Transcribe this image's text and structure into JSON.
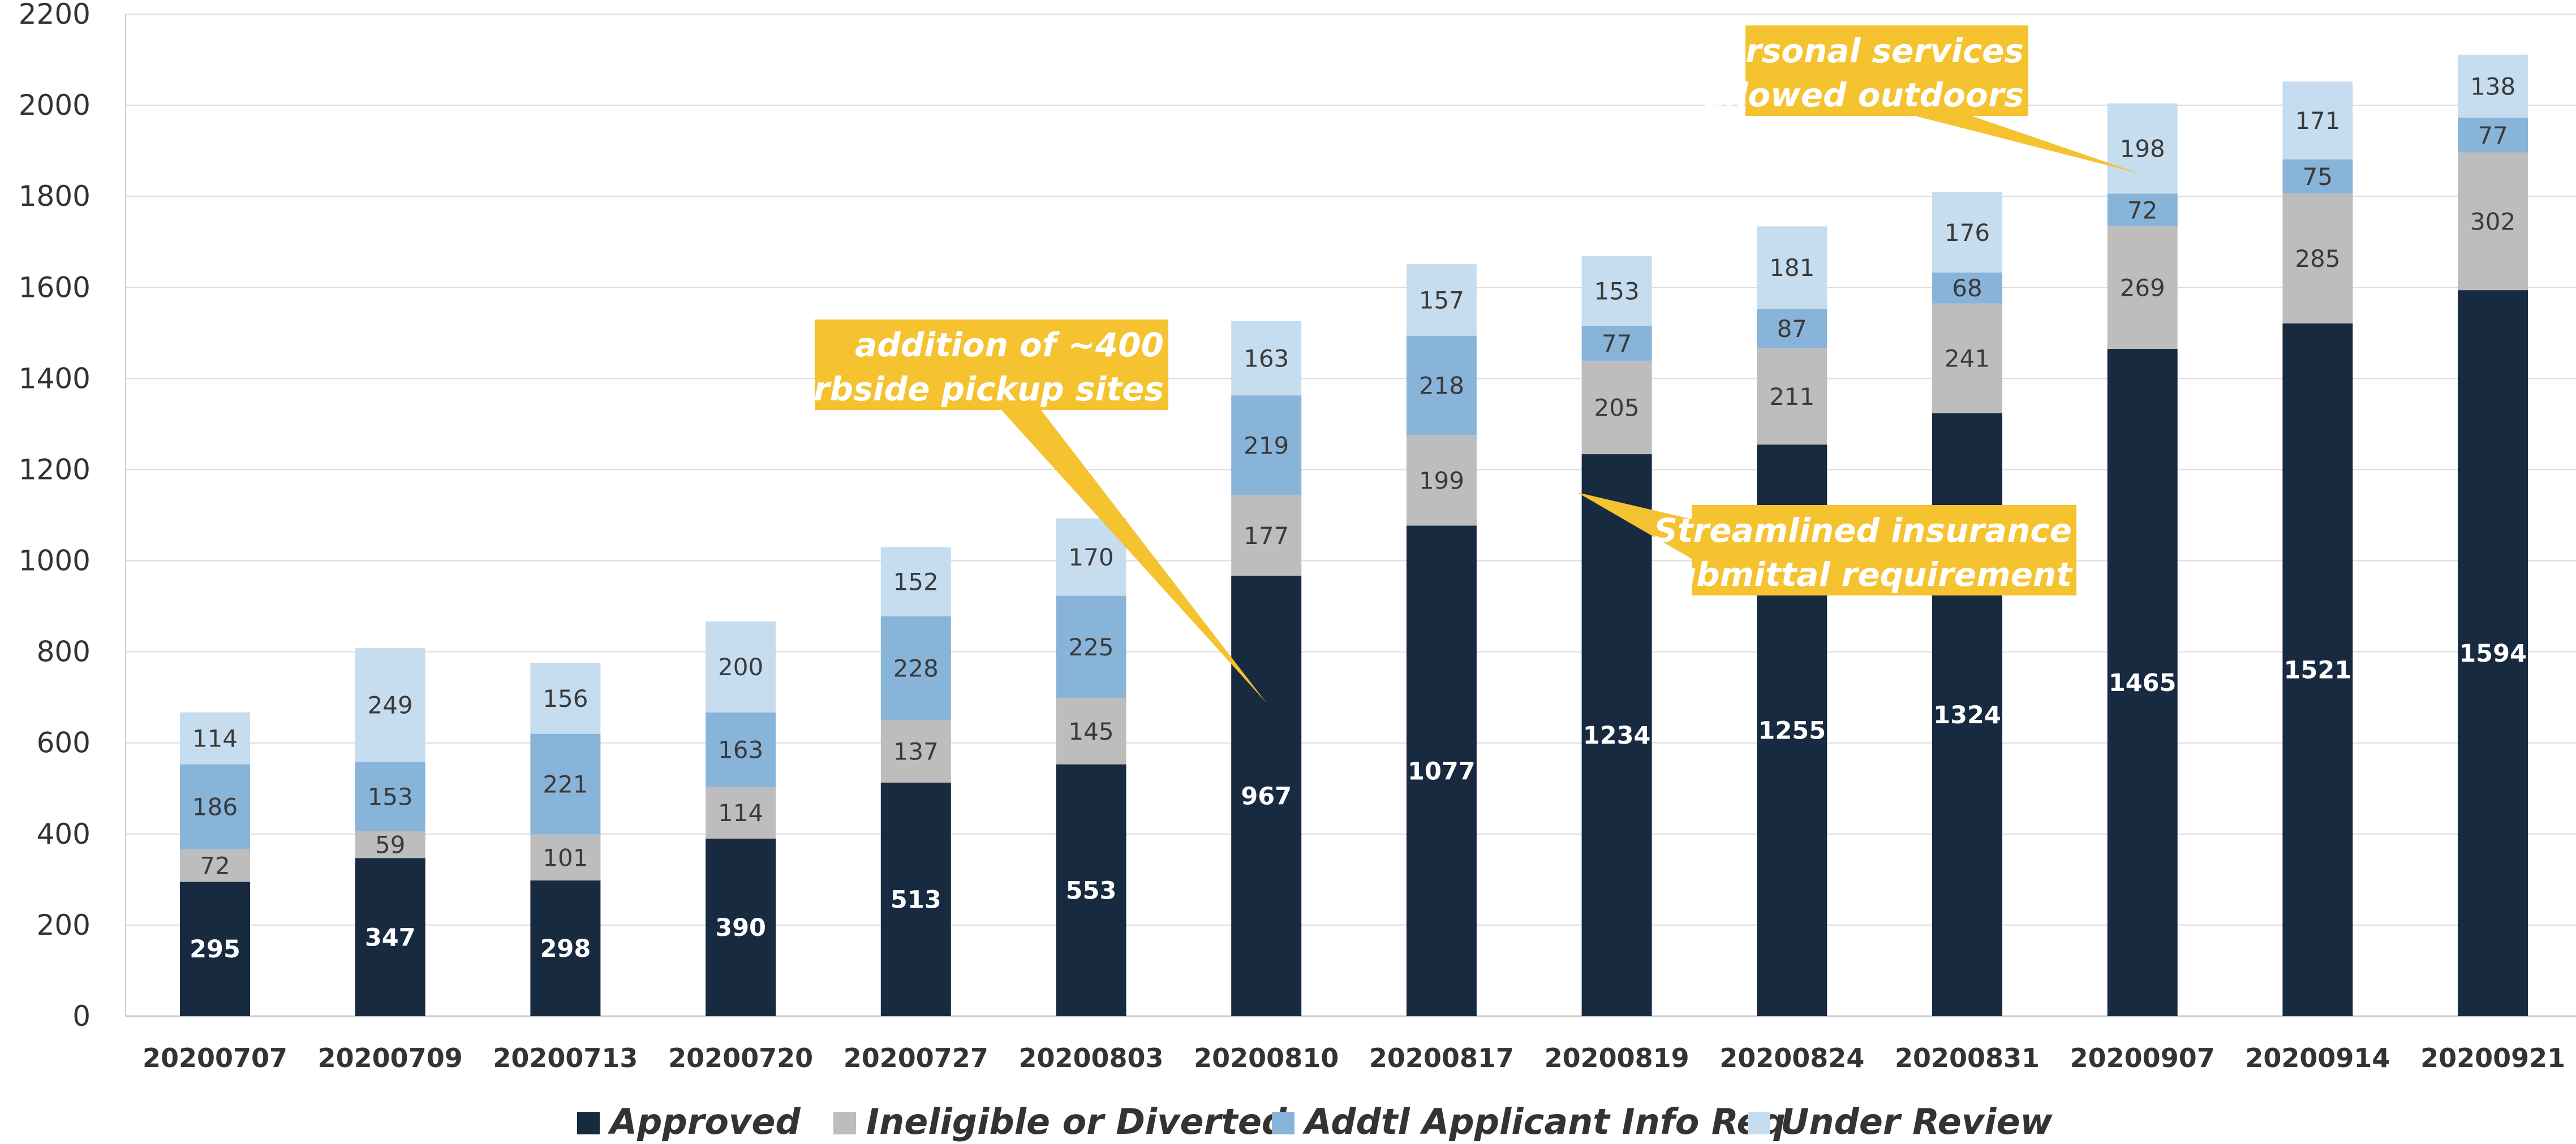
{
  "chart_data": {
    "type": "bar",
    "stacked": true,
    "categories": [
      "20200707",
      "20200709",
      "20200713",
      "20200720",
      "20200727",
      "20200803",
      "20200810",
      "20200817",
      "20200819",
      "20200824",
      "20200831",
      "20200907",
      "20200914",
      "20200921"
    ],
    "series": [
      {
        "name": "Approved",
        "color": "#172a40",
        "values": [
          295,
          347,
          298,
          390,
          513,
          553,
          967,
          1077,
          1234,
          1255,
          1324,
          1465,
          1521,
          1594
        ]
      },
      {
        "name": "Ineligible or Diverted",
        "color": "#bdbdbd",
        "values": [
          72,
          59,
          101,
          114,
          137,
          145,
          177,
          199,
          205,
          211,
          241,
          269,
          285,
          302
        ]
      },
      {
        "name": "Addtl Applicant Info Req",
        "color": "#88b4da",
        "values": [
          186,
          153,
          221,
          163,
          228,
          225,
          219,
          218,
          77,
          87,
          68,
          72,
          75,
          77
        ]
      },
      {
        "name": "Under Review",
        "color": "#c6ddf0",
        "values": [
          114,
          249,
          156,
          200,
          152,
          170,
          163,
          157,
          153,
          181,
          176,
          198,
          171,
          138
        ]
      }
    ],
    "ylim": [
      0,
      2200
    ],
    "yticks": [
      0,
      200,
      400,
      600,
      800,
      1000,
      1200,
      1400,
      1600,
      1800,
      2000,
      2200
    ],
    "grid": true,
    "legend_position": "bottom",
    "xlabel": "",
    "ylabel": "",
    "title": "",
    "annotations": [
      {
        "text": [
          "addition of ~400",
          "curbside pickup sites"
        ],
        "category": "20200810",
        "target_value": 800
      },
      {
        "text": [
          "Streamlined insurance",
          "submittal requirement"
        ],
        "category": "20200819",
        "target_value": 1150
      },
      {
        "text": [
          "personal services",
          "allowed outdoors"
        ],
        "category": "20200907",
        "target_value": 1850
      }
    ],
    "annotation_color": "#f5c230"
  }
}
